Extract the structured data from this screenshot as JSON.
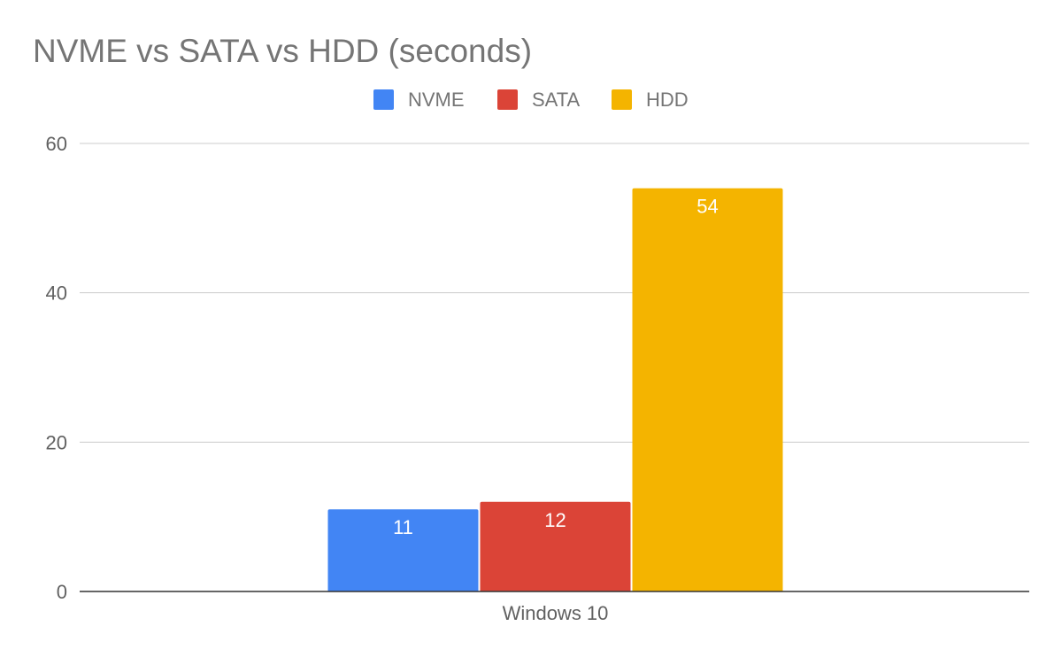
{
  "chart_data": {
    "type": "bar",
    "title": "NVME vs SATA vs HDD (seconds)",
    "xlabel": "",
    "ylabel": "",
    "categories": [
      "Windows 10"
    ],
    "series": [
      {
        "name": "NVME",
        "values": [
          11
        ],
        "color": "#4285f4"
      },
      {
        "name": "SATA",
        "values": [
          12
        ],
        "color": "#db4437"
      },
      {
        "name": "HDD",
        "values": [
          54
        ],
        "color": "#f4b400"
      }
    ],
    "ylim": [
      0,
      60
    ],
    "yticks": [
      "0",
      "20",
      "40",
      "60"
    ],
    "grid": true,
    "legend_position": "top",
    "data_labels": true
  }
}
